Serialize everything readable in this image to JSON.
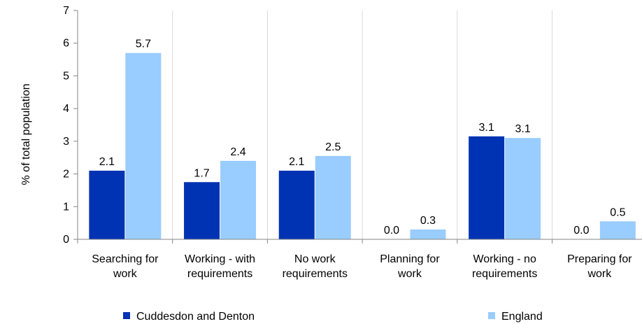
{
  "chart_data": {
    "type": "bar",
    "title": "",
    "xlabel": "",
    "ylabel": "% of total population",
    "ylim": [
      0,
      7
    ],
    "yticks": [
      0,
      1,
      2,
      3,
      4,
      5,
      6,
      7
    ],
    "grid": "vertical category separators",
    "legend_position": "bottom",
    "categories": [
      [
        "Searching for",
        "work"
      ],
      [
        "Working - with",
        "requirements"
      ],
      [
        "No work",
        "requirements"
      ],
      [
        "Planning for",
        "work"
      ],
      [
        "Working - no",
        "requirements"
      ],
      [
        "Preparing for",
        "work"
      ]
    ],
    "series": [
      {
        "name": "Cuddesdon and Denton",
        "color": "#0033b3",
        "values": [
          2.1,
          1.75,
          2.1,
          0.0,
          3.15,
          0.0
        ],
        "labels": [
          "2.1",
          "1.7",
          "2.1",
          "0.0",
          "3.1",
          "0.0"
        ]
      },
      {
        "name": "England",
        "color": "#99ccff",
        "values": [
          5.7,
          2.4,
          2.55,
          0.3,
          3.1,
          0.55
        ],
        "labels": [
          "5.7",
          "2.4",
          "2.5",
          "0.3",
          "3.1",
          "0.5"
        ]
      }
    ]
  }
}
